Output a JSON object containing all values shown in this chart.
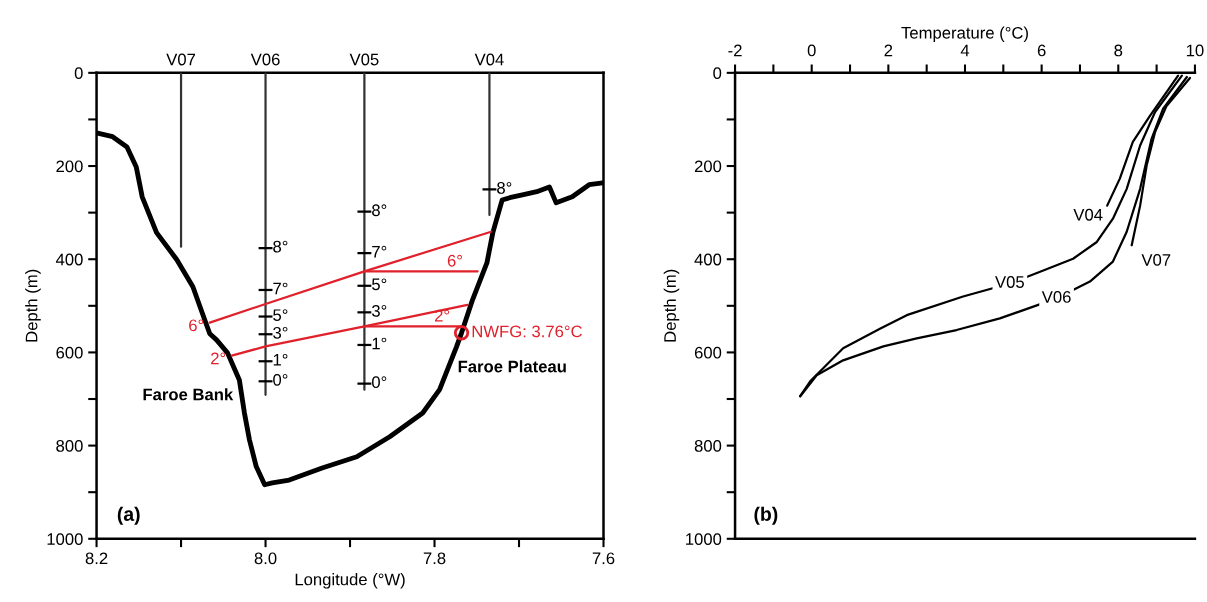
{
  "chart_data": [
    {
      "type": "line",
      "xlabel": "Longitude (°W)",
      "ylabel": "Depth (m)",
      "xlim": [
        8.2,
        7.6
      ],
      "xticks": [
        8.2,
        {
          "value": 8.1,
          "label": null
        },
        {
          "value": 8.0,
          "label": "8.0"
        },
        {
          "value": 7.9,
          "label": null
        },
        7.8,
        {
          "value": 7.7,
          "label": null
        },
        7.6
      ],
      "ylim": [
        1000,
        0
      ],
      "yticks": [
        0,
        {
          "value": 100,
          "label": null
        },
        200,
        {
          "value": 300,
          "label": null
        },
        400,
        {
          "value": 500,
          "label": null
        },
        600,
        {
          "value": 700,
          "label": null
        },
        800,
        {
          "value": 900,
          "label": null
        },
        1000
      ],
      "grid": false,
      "legend": false,
      "series": [
        {
          "type": "line",
          "color": "#000000",
          "x": [
            8.2,
            8.181,
            8.164,
            8.153,
            8.146,
            8.129,
            8.105,
            8.086,
            8.075,
            8.066,
            8.058,
            8.045,
            8.031,
            8.025,
            8.019,
            8.011,
            8.001,
            7.992,
            7.972,
            7.933,
            7.892,
            7.853,
            7.814,
            7.794,
            7.774,
            7.768,
            7.755,
            7.738,
            7.731,
            7.72,
            7.711,
            7.696,
            7.679,
            7.664,
            7.656,
            7.637,
            7.617,
            7.601
          ],
          "values": [
            129,
            137,
            159,
            202,
            266,
            343,
            401,
            459,
            515,
            560,
            573,
            601,
            659,
            730,
            788,
            845,
            884,
            880,
            874,
            848,
            824,
            781,
            730,
            680,
            588,
            558,
            487,
            408,
            343,
            273,
            268,
            262,
            255,
            245,
            279,
            266,
            240,
            236
          ]
        },
        {
          "type": "line",
          "name": "V07",
          "color": "#333333",
          "x": [
            8.1,
            8.1
          ],
          "values": [
            0,
            373
          ]
        },
        {
          "type": "line",
          "name": "V06",
          "color": "#333333",
          "x": [
            8.0,
            8.0
          ],
          "values": [
            0,
            691
          ]
        },
        {
          "type": "line",
          "name": "V05",
          "color": "#333333",
          "x": [
            7.883,
            7.883
          ],
          "values": [
            0,
            680
          ]
        },
        {
          "type": "line",
          "name": "V04",
          "color": "#333333",
          "x": [
            7.735,
            7.735
          ],
          "values": [
            0,
            305
          ]
        },
        {
          "type": "line",
          "name": "6°",
          "color": "#e0202a",
          "x": [
            8.066,
            8.0,
            7.883,
            7.733
          ],
          "values": [
            536,
            496,
            426,
            341
          ]
        },
        {
          "type": "line",
          "name": "6°",
          "color": "#e0202a",
          "x": [
            7.883,
            7.749
          ],
          "values": [
            426,
            426
          ]
        },
        {
          "type": "line",
          "name": "2°",
          "color": "#e0202a",
          "x": [
            8.04,
            8.0,
            7.883,
            7.761
          ],
          "values": [
            607,
            587,
            544,
            498
          ]
        },
        {
          "type": "line",
          "name": "2°",
          "color": "#e0202a",
          "x": [
            7.883,
            7.768
          ],
          "values": [
            544,
            544
          ]
        },
        {
          "type": "scatter",
          "marker": "circle",
          "name": "NWFG: 3.76°C",
          "color": "#e0202a",
          "x": [
            7.768
          ],
          "values": [
            558
          ]
        }
      ],
      "annotations": [
        "(a)",
        "Faroe Bank",
        "Faroe Plateau",
        {
          "text": "8°",
          "x": 8.0,
          "y": 376
        },
        {
          "text": "7°",
          "x": 8.0,
          "y": 466
        },
        {
          "text": "5°",
          "x": 8.0,
          "y": 523
        },
        {
          "text": "3°",
          "x": 8.0,
          "y": 561
        },
        {
          "text": "1°",
          "x": 8.0,
          "y": 619
        },
        {
          "text": "0°",
          "x": 8.0,
          "y": 662
        },
        {
          "text": "8°",
          "x": 7.883,
          "y": 298
        },
        {
          "text": "7°",
          "x": 7.883,
          "y": 387
        },
        {
          "text": "5°",
          "x": 7.883,
          "y": 457
        },
        {
          "text": "3°",
          "x": 7.883,
          "y": 514
        },
        {
          "text": "1°",
          "x": 7.883,
          "y": 584
        },
        {
          "text": "0°",
          "x": 7.883,
          "y": 667
        },
        {
          "text": "8°",
          "x": 7.735,
          "y": 250
        }
      ]
    },
    {
      "type": "line",
      "x2label": "Temperature (°C)",
      "ylabel": "Depth (m)",
      "xlim": [
        -2,
        10
      ],
      "xticks": [
        -2,
        {
          "value": -1,
          "label": null
        },
        0,
        {
          "value": 1,
          "label": null
        },
        2,
        {
          "value": 3,
          "label": null
        },
        4,
        {
          "value": 5,
          "label": null
        },
        6,
        {
          "value": 7,
          "label": null
        },
        8,
        {
          "value": 9,
          "label": null
        },
        10
      ],
      "ylim": [
        1000,
        0
      ],
      "yticks": [
        0,
        {
          "value": 100,
          "label": null
        },
        200,
        {
          "value": 300,
          "label": null
        },
        400,
        {
          "value": 500,
          "label": null
        },
        600,
        {
          "value": 700,
          "label": null
        },
        800,
        {
          "value": 900,
          "label": null
        },
        1000
      ],
      "grid": false,
      "legend": false,
      "series": [
        {
          "name": "V04",
          "color": "#000000",
          "x": [
            9.56,
            8.83,
            8.38,
            8.04,
            7.71
          ],
          "values": [
            6,
            92,
            148,
            227,
            285
          ]
        },
        {
          "name": "V05",
          "color": "#000000",
          "x": [
            9.66,
            8.96,
            8.57,
            8.22,
            7.86,
            7.44,
            6.82,
            5.96,
            5.17,
            3.95,
            2.48,
            1.78,
            0.82,
            0.3,
            -0.04,
            -0.3
          ],
          "values": [
            6,
            84,
            156,
            249,
            313,
            363,
            399,
            427,
            452,
            480,
            520,
            549,
            591,
            634,
            662,
            694
          ]
        },
        {
          "name": "V06",
          "color": "#000000",
          "x": [
            9.79,
            9.17,
            8.87,
            8.57,
            8.22,
            7.86,
            7.26,
            6.39,
            4.91,
            3.78,
            2.74,
            1.87,
            0.82,
            0.13,
            -0.3
          ],
          "values": [
            9,
            77,
            141,
            249,
            341,
            405,
            448,
            484,
            527,
            552,
            570,
            587,
            617,
            649,
            694
          ]
        },
        {
          "name": "V07",
          "color": "#000000",
          "x": [
            9.87,
            9.26,
            8.96,
            8.74,
            8.57,
            8.35
          ],
          "values": [
            11,
            71,
            127,
            199,
            285,
            370
          ]
        }
      ],
      "annotations": [
        "(b)"
      ]
    }
  ]
}
